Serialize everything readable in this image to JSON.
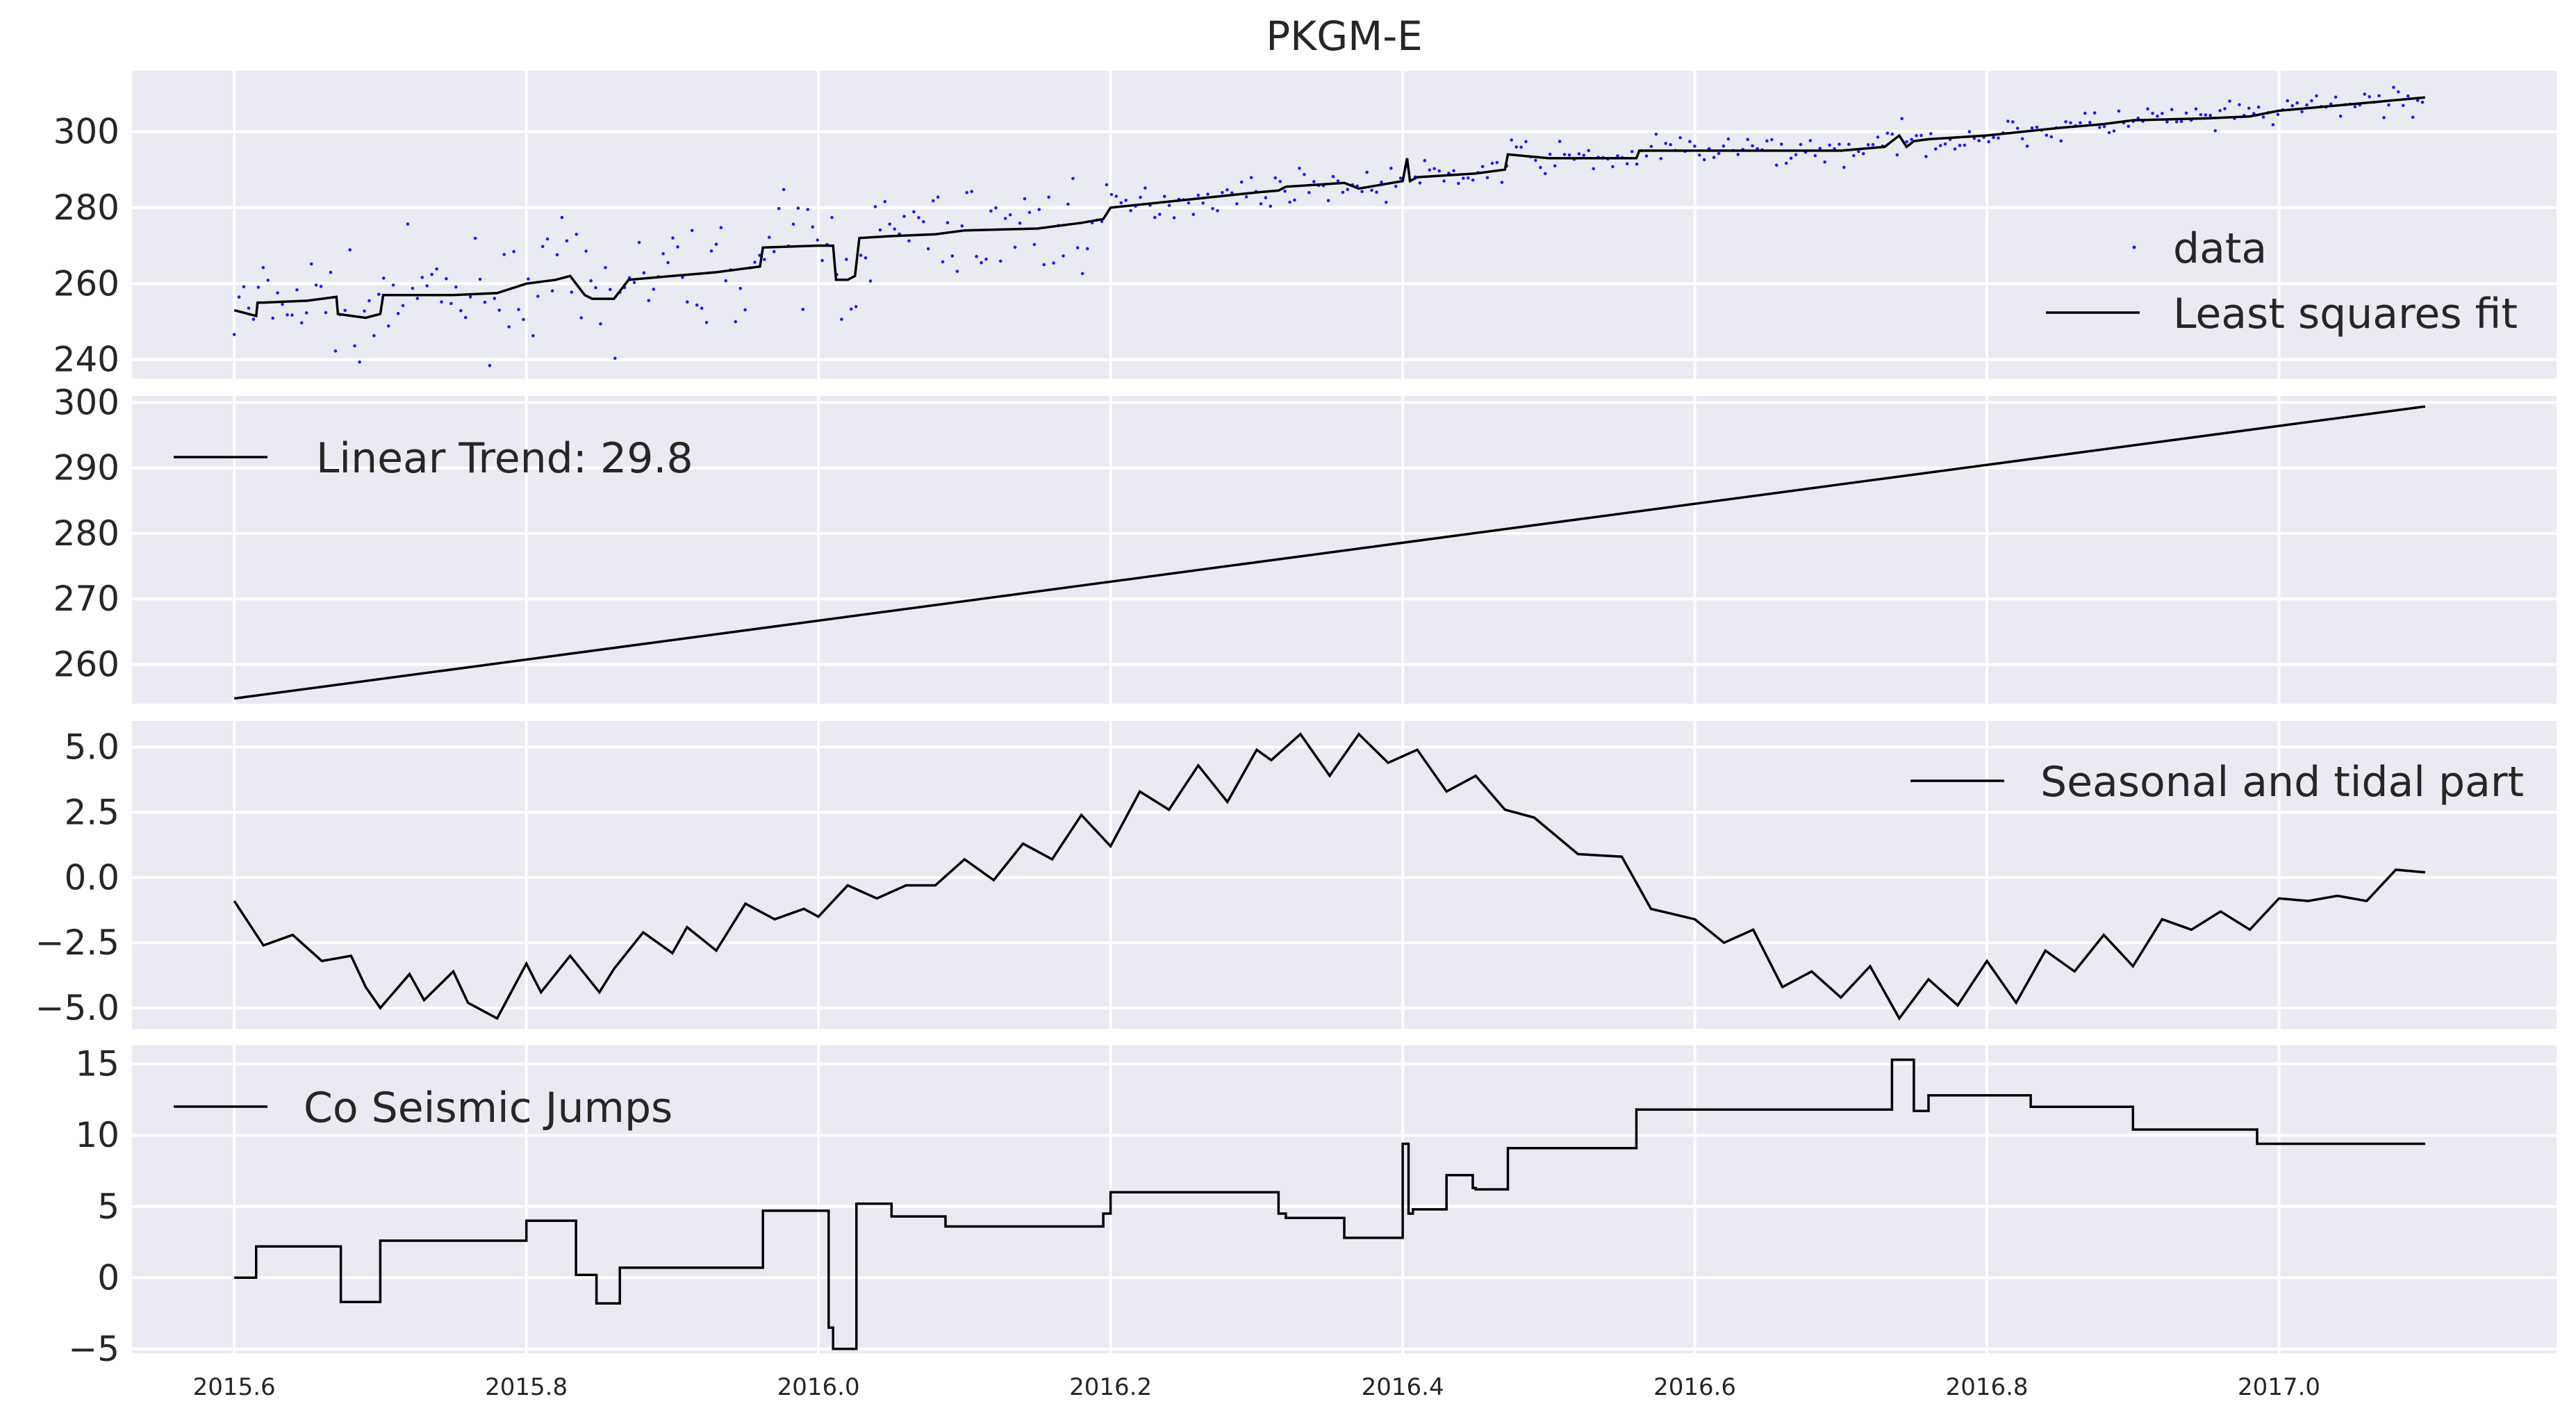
{
  "chart_data": [
    {
      "type": "line",
      "title": "PKGM-E",
      "xlim": [
        2015.53,
        2017.19
      ],
      "ylim": [
        235,
        316
      ],
      "yticks": [
        240,
        260,
        280,
        300
      ],
      "grid": true,
      "legend": {
        "placement": "right",
        "entries": [
          "data",
          "Least squares fit"
        ]
      },
      "series": [
        {
          "name": "data",
          "style": "points",
          "color": "#0000ff"
        },
        {
          "name": "Least squares fit",
          "style": "line",
          "color": "#000000",
          "x": [
            2015.6,
            2015.615,
            2015.616,
            2015.62,
            2015.65,
            2015.67,
            2015.671,
            2015.69,
            2015.7,
            2015.702,
            2015.75,
            2015.78,
            2015.8,
            2015.82,
            2015.83,
            2015.84,
            2015.845,
            2015.86,
            2015.87,
            2015.9,
            2015.93,
            2015.96,
            2015.962,
            2016.0,
            2016.01,
            2016.012,
            2016.02,
            2016.025,
            2016.028,
            2016.05,
            2016.08,
            2016.1,
            2016.15,
            2016.18,
            2016.195,
            2016.2,
            2016.25,
            2016.3,
            2016.315,
            2016.32,
            2016.36,
            2016.37,
            2016.4,
            2016.403,
            2016.405,
            2016.41,
            2016.45,
            2016.47,
            2016.472,
            2016.5,
            2016.56,
            2016.562,
            2016.6,
            2016.65,
            2016.7,
            2016.73,
            2016.74,
            2016.745,
            2016.75,
            2016.76,
            2016.8,
            2016.85,
            2016.88,
            2016.9,
            2016.95,
            2016.98,
            2017.0,
            2017.1
          ],
          "y": [
            253,
            251.5,
            255,
            255,
            255.5,
            256.5,
            252,
            251,
            252,
            257,
            257,
            257.5,
            260,
            261,
            262,
            257,
            256,
            256,
            261,
            262,
            263,
            264.5,
            269.5,
            270,
            270,
            261,
            261,
            262,
            272,
            272.5,
            273,
            274,
            274.5,
            276,
            277,
            280,
            282,
            284,
            284.5,
            285.5,
            286.5,
            285,
            287,
            293,
            287,
            288,
            289,
            290,
            294,
            293,
            293,
            295,
            295,
            295,
            295,
            296,
            299,
            296,
            297.5,
            298,
            299,
            301,
            302,
            303,
            303.5,
            304,
            305.5,
            309
          ]
        }
      ]
    },
    {
      "type": "line",
      "ylim": [
        254,
        301
      ],
      "yticks": [
        260,
        270,
        280,
        290,
        300
      ],
      "grid": true,
      "legend": {
        "placement": "top-left",
        "entries": [
          "Linear Trend: 29.8"
        ]
      },
      "series": [
        {
          "name": "Linear Trend: 29.8",
          "x": [
            2015.6,
            2017.1
          ],
          "y": [
            254.8,
            299.4
          ]
        }
      ]
    },
    {
      "type": "line",
      "ylim": [
        -5.8,
        6.0
      ],
      "yticks": [
        -5.0,
        -2.5,
        0.0,
        2.5,
        5.0
      ],
      "ytick_labels": [
        "−5.0",
        "−2.5",
        "0.0",
        "2.5",
        "5.0"
      ],
      "grid": true,
      "legend": {
        "placement": "top-right",
        "entries": [
          "Seasonal and tidal part"
        ]
      },
      "series": [
        {
          "name": "Seasonal and tidal part",
          "x": [
            2015.6,
            2015.62,
            2015.64,
            2015.66,
            2015.68,
            2015.69,
            2015.7,
            2015.72,
            2015.73,
            2015.75,
            2015.76,
            2015.78,
            2015.8,
            2015.81,
            2015.83,
            2015.85,
            2015.86,
            2015.88,
            2015.9,
            2015.91,
            2015.93,
            2015.95,
            2015.97,
            2015.99,
            2016.0,
            2016.02,
            2016.04,
            2016.06,
            2016.08,
            2016.1,
            2016.12,
            2016.14,
            2016.16,
            2016.18,
            2016.2,
            2016.22,
            2016.24,
            2016.26,
            2016.28,
            2016.3,
            2016.31,
            2016.33,
            2016.35,
            2016.37,
            2016.39,
            2016.41,
            2016.43,
            2016.45,
            2016.47,
            2016.49,
            2016.52,
            2016.55,
            2016.57,
            2016.6,
            2016.62,
            2016.64,
            2016.66,
            2016.68,
            2016.7,
            2016.72,
            2016.74,
            2016.76,
            2016.78,
            2016.8,
            2016.82,
            2016.84,
            2016.86,
            2016.88,
            2016.9,
            2016.92,
            2016.94,
            2016.96,
            2016.98,
            2017.0,
            2017.02,
            2017.04,
            2017.06,
            2017.08,
            2017.1
          ],
          "y": [
            -0.9,
            -2.6,
            -2.2,
            -3.2,
            -3.0,
            -4.2,
            -5.0,
            -3.7,
            -4.7,
            -3.6,
            -4.8,
            -5.4,
            -3.3,
            -4.4,
            -3.0,
            -4.4,
            -3.5,
            -2.1,
            -2.9,
            -1.9,
            -2.8,
            -1.0,
            -1.6,
            -1.2,
            -1.5,
            -0.3,
            -0.8,
            -0.3,
            -0.3,
            0.7,
            -0.1,
            1.3,
            0.7,
            2.4,
            1.2,
            3.3,
            2.6,
            4.3,
            2.9,
            4.9,
            4.5,
            5.5,
            3.9,
            5.5,
            4.4,
            4.9,
            3.3,
            3.9,
            2.6,
            2.3,
            0.9,
            0.8,
            -1.2,
            -1.6,
            -2.5,
            -2.0,
            -4.2,
            -3.6,
            -4.6,
            -3.4,
            -5.4,
            -3.9,
            -4.9,
            -3.2,
            -4.8,
            -2.8,
            -3.6,
            -2.2,
            -3.4,
            -1.6,
            -2.0,
            -1.3,
            -2.0,
            -0.8,
            -0.9,
            -0.7,
            -0.9,
            0.3,
            0.2
          ]
        }
      ]
    },
    {
      "type": "line",
      "ylim": [
        -5.3,
        16.3
      ],
      "yticks": [
        -5,
        0,
        5,
        10,
        15
      ],
      "ytick_labels": [
        "−5",
        "0",
        "5",
        "10",
        "15"
      ],
      "xlabel": "",
      "xticks": [
        2015.6,
        2015.8,
        2016.0,
        2016.2,
        2016.4,
        2016.6,
        2016.8,
        2017.0
      ],
      "xtick_labels": [
        "2015.6",
        "2015.8",
        "2016.0",
        "2016.2",
        "2016.4",
        "2016.6",
        "2016.8",
        "2017.0"
      ],
      "grid": true,
      "legend": {
        "placement": "top-left",
        "entries": [
          "Co Seismic Jumps"
        ]
      },
      "series": [
        {
          "name": "Co Seismic Jumps",
          "step": true,
          "x": [
            2015.6,
            2015.615,
            2015.615,
            2015.673,
            2015.673,
            2015.7,
            2015.7,
            2015.8,
            2015.8,
            2015.834,
            2015.834,
            2015.848,
            2015.848,
            2015.864,
            2015.864,
            2015.962,
            2015.962,
            2016.007,
            2016.007,
            2016.01,
            2016.01,
            2016.026,
            2016.026,
            2016.05,
            2016.05,
            2016.087,
            2016.087,
            2016.195,
            2016.195,
            2016.2,
            2016.2,
            2016.315,
            2016.315,
            2016.32,
            2016.32,
            2016.36,
            2016.36,
            2016.4,
            2016.4,
            2016.404,
            2016.404,
            2016.407,
            2016.407,
            2016.43,
            2016.43,
            2016.448,
            2016.448,
            2016.45,
            2016.45,
            2016.472,
            2016.472,
            2016.56,
            2016.56,
            2016.735,
            2016.735,
            2016.75,
            2016.75,
            2016.76,
            2016.76,
            2016.83,
            2016.83,
            2016.9,
            2016.9,
            2016.985,
            2016.985,
            2017.1
          ],
          "y": [
            0,
            0,
            2.2,
            2.2,
            -1.7,
            -1.7,
            2.6,
            2.6,
            4,
            4,
            0.2,
            0.2,
            -1.8,
            -1.8,
            0.7,
            0.7,
            4.7,
            4.7,
            -3.5,
            -3.5,
            -5,
            -5,
            5.2,
            5.2,
            4.3,
            4.3,
            3.6,
            3.6,
            4.5,
            4.5,
            6,
            6,
            4.5,
            4.5,
            4.2,
            4.2,
            2.8,
            2.8,
            9.4,
            9.4,
            4.5,
            4.5,
            4.8,
            4.8,
            7.2,
            7.2,
            6.3,
            6.3,
            6.2,
            6.2,
            9.1,
            9.1,
            11.8,
            11.8,
            15.3,
            15.3,
            11.7,
            11.7,
            12.8,
            12.8,
            12,
            12,
            10.4,
            10.4,
            9.4,
            9.4
          ]
        }
      ]
    }
  ]
}
